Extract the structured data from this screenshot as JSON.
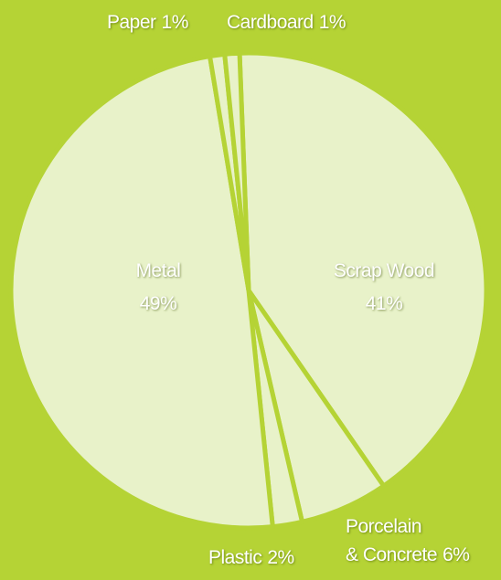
{
  "chart_data": {
    "type": "pie",
    "categories": [
      "Scrap Wood",
      "Porcelain & Concrete",
      "Plastic",
      "Metal",
      "Paper",
      "Cardboard"
    ],
    "values": [
      41,
      6,
      2,
      49,
      1,
      1
    ],
    "value_labels": [
      "41%",
      "6%",
      "2%",
      "49%",
      "1%",
      "1%"
    ],
    "color": "#e8f2c9",
    "start_angle": -2.2
  }
}
